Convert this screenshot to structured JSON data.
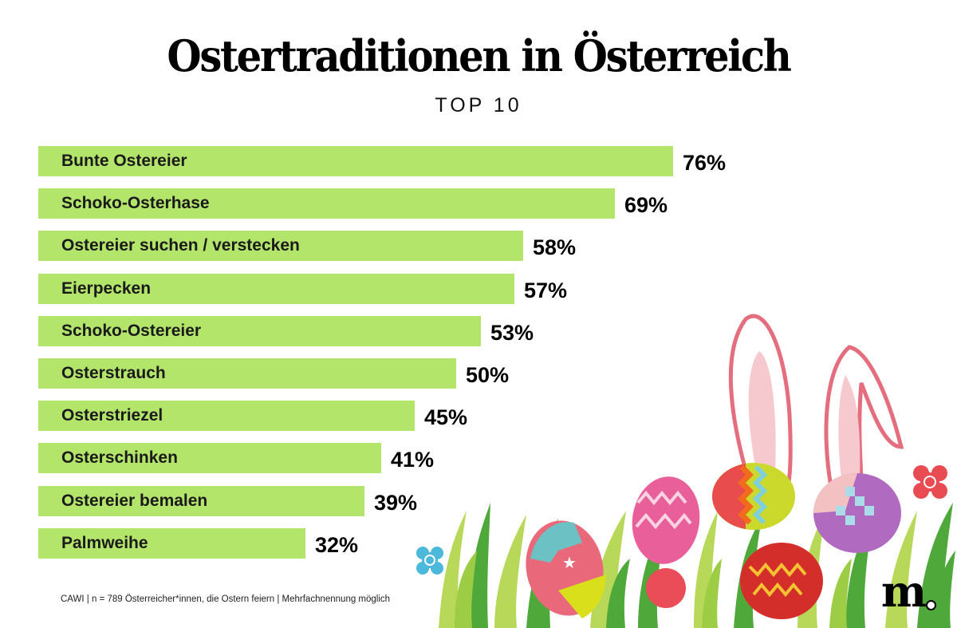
{
  "title": "Ostertraditionen in Österreich",
  "subtitle": "TOP 10",
  "footnote": "CAWI | n = 789 Österreicher*innen, die Ostern feiern | Mehrfachnennung möglich",
  "logo": "m",
  "colors": {
    "bar": "#b4e56b",
    "text": "#000000",
    "grass_light": "#b8d85a",
    "grass_dark": "#4fa83a",
    "ear_outline": "#e46d7e",
    "ear_inner": "#f6c9cf"
  },
  "chart_data": {
    "type": "bar",
    "orientation": "horizontal",
    "title": "Ostertraditionen in Österreich",
    "subtitle": "TOP 10",
    "unit": "%",
    "xlim": [
      0,
      100
    ],
    "grid": false,
    "categories": [
      "Bunte Ostereier",
      "Schoko-Osterhase",
      "Ostereier suchen / verstecken",
      "Eierpecken",
      "Schoko-Ostereier",
      "Osterstrauch",
      "Osterstriezel",
      "Osterschinken",
      "Ostereier bemalen",
      "Palmweihe"
    ],
    "values": [
      76,
      69,
      58,
      57,
      53,
      50,
      45,
      41,
      39,
      32
    ],
    "value_labels": [
      "76%",
      "69%",
      "58%",
      "57%",
      "53%",
      "50%",
      "45%",
      "41%",
      "39%",
      "32%"
    ]
  }
}
